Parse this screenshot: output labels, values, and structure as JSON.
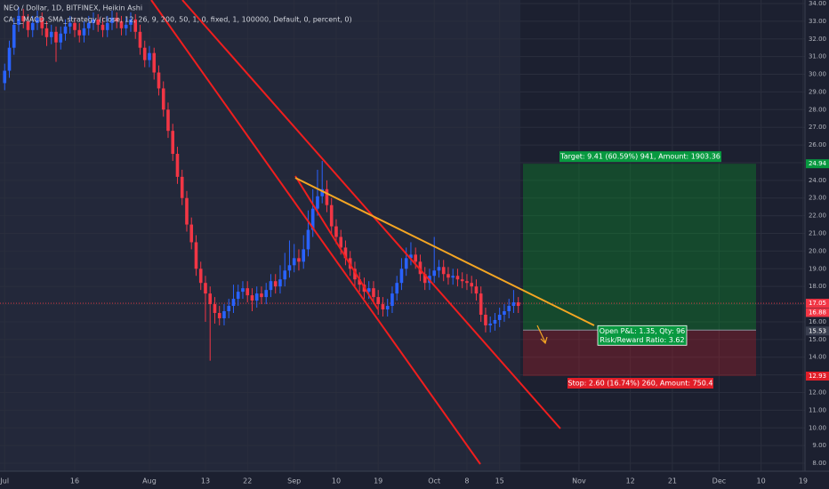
{
  "chart_data": {
    "type": "candlestick",
    "title": "NEO / Dollar, 1D, BITFINEX, Heikin Ashi",
    "subtitle": "CA_-_MACD_SMA_strategy (close, 12, 26, 9, 200, 50, 1, 0, fixed, 1, 100000, Default, 0, percent, 0)",
    "up_color": "#2962ff",
    "down_color": "#f23645",
    "xlim": [
      -1,
      171.4
    ],
    "ylim": [
      7.55,
      34.2
    ],
    "xticks": [
      {
        "value": 0,
        "label": "Jul"
      },
      {
        "value": 15,
        "label": "16"
      },
      {
        "value": 31,
        "label": "Aug"
      },
      {
        "value": 43,
        "label": "13"
      },
      {
        "value": 52,
        "label": "22"
      },
      {
        "value": 62,
        "label": "Sep"
      },
      {
        "value": 71,
        "label": "10"
      },
      {
        "value": 80,
        "label": "19"
      },
      {
        "value": 92,
        "label": "Oct"
      },
      {
        "value": 99,
        "label": "8"
      },
      {
        "value": 106,
        "label": "15"
      },
      {
        "value": 123,
        "label": "Nov"
      },
      {
        "value": 134,
        "label": "12"
      },
      {
        "value": 143,
        "label": "21"
      },
      {
        "value": 153,
        "label": "Dec"
      },
      {
        "value": 162,
        "label": "10"
      },
      {
        "value": 171,
        "label": "19"
      }
    ],
    "yticks": [
      {
        "value": 8,
        "label": "8.00"
      },
      {
        "value": 9,
        "label": "9.00"
      },
      {
        "value": 10,
        "label": "10.00"
      },
      {
        "value": 11,
        "label": "11.00"
      },
      {
        "value": 12,
        "label": "12.00"
      },
      {
        "value": 13,
        "label": "13.00"
      },
      {
        "value": 14,
        "label": "14.00"
      },
      {
        "value": 15,
        "label": "15.00"
      },
      {
        "value": 16,
        "label": "16.00"
      },
      {
        "value": 17,
        "label": "17.00"
      },
      {
        "value": 18,
        "label": "18.00"
      },
      {
        "value": 19,
        "label": "19.00"
      },
      {
        "value": 20,
        "label": "20.00"
      },
      {
        "value": 21,
        "label": "21.00"
      },
      {
        "value": 22,
        "label": "22.00"
      },
      {
        "value": 23,
        "label": "23.00"
      },
      {
        "value": 24,
        "label": "24.00"
      },
      {
        "value": 25,
        "label": "25.00"
      },
      {
        "value": 26,
        "label": "26.00"
      },
      {
        "value": 27,
        "label": "27.00"
      },
      {
        "value": 28,
        "label": "28.00"
      },
      {
        "value": 29,
        "label": "29.00"
      },
      {
        "value": 30,
        "label": "30.00"
      },
      {
        "value": 31,
        "label": "31.00"
      },
      {
        "value": 32,
        "label": "32.00"
      },
      {
        "value": 33,
        "label": "33.00"
      },
      {
        "value": 34,
        "label": "34.00"
      }
    ],
    "current_price": 17.05,
    "last_close": 16.88,
    "position": {
      "target": 24.94,
      "entry": 15.53,
      "stop": 12.93,
      "target_label": "Target: 9.41 (60.59%) 941, Amount: 1903.36",
      "pnl_label": "Open P&L: 1.35, Qty: 96",
      "ratio_label": "Risk/Reward Ratio: 3.62",
      "stop_label": "Stop: 2.60 (16.74%) 260, Amount: 750.4"
    },
    "x": [
      0,
      1,
      2,
      3,
      4,
      5,
      6,
      7,
      8,
      9,
      10,
      11,
      12,
      13,
      14,
      15,
      16,
      17,
      18,
      19,
      20,
      21,
      22,
      23,
      24,
      25,
      26,
      27,
      28,
      29,
      30,
      31,
      32,
      33,
      34,
      35,
      36,
      37,
      38,
      39,
      40,
      41,
      42,
      43,
      44,
      45,
      46,
      47,
      48,
      49,
      50,
      51,
      52,
      53,
      54,
      55,
      56,
      57,
      58,
      59,
      60,
      61,
      62,
      63,
      64,
      65,
      66,
      67,
      68,
      69,
      70,
      71,
      72,
      73,
      74,
      75,
      76,
      77,
      78,
      79,
      80,
      81,
      82,
      83,
      84,
      85,
      86,
      87,
      88,
      89,
      90,
      91,
      92,
      93,
      94,
      95,
      96,
      97,
      98,
      99,
      100,
      101,
      102,
      103,
      104,
      105,
      106,
      107,
      108,
      109,
      110
    ],
    "ohlc": [
      [
        29.5,
        30.6,
        29.1,
        30.2
      ],
      [
        30.2,
        31.9,
        29.8,
        31.5
      ],
      [
        31.5,
        33.2,
        31.1,
        32.8
      ],
      [
        32.8,
        33.8,
        32.4,
        33.3
      ],
      [
        33.3,
        33.7,
        32.6,
        33.0
      ],
      [
        33.0,
        33.4,
        32.1,
        32.5
      ],
      [
        32.5,
        33.3,
        32.1,
        32.9
      ],
      [
        32.9,
        33.6,
        32.5,
        33.2
      ],
      [
        33.2,
        33.5,
        32.2,
        32.6
      ],
      [
        32.6,
        33.0,
        31.6,
        32.1
      ],
      [
        32.1,
        32.8,
        31.7,
        32.4
      ],
      [
        32.4,
        32.7,
        30.7,
        31.8
      ],
      [
        31.8,
        32.7,
        31.4,
        32.3
      ],
      [
        32.3,
        33.1,
        31.9,
        32.7
      ],
      [
        32.7,
        33.3,
        32.3,
        32.9
      ],
      [
        32.9,
        33.2,
        32.1,
        32.5
      ],
      [
        32.5,
        32.9,
        31.8,
        32.2
      ],
      [
        32.2,
        33.0,
        31.8,
        32.6
      ],
      [
        32.6,
        33.3,
        32.2,
        32.9
      ],
      [
        32.9,
        33.5,
        32.5,
        33.1
      ],
      [
        33.1,
        33.4,
        32.4,
        32.8
      ],
      [
        32.8,
        33.2,
        32.1,
        32.5
      ],
      [
        32.5,
        33.3,
        32.1,
        32.9
      ],
      [
        32.9,
        33.6,
        32.5,
        33.2
      ],
      [
        33.2,
        33.5,
        32.6,
        33.0
      ],
      [
        33.0,
        33.3,
        32.2,
        32.6
      ],
      [
        32.6,
        33.2,
        32.2,
        32.8
      ],
      [
        32.8,
        33.5,
        32.4,
        33.1
      ],
      [
        33.1,
        33.4,
        32.0,
        32.4
      ],
      [
        32.4,
        32.8,
        31.1,
        31.5
      ],
      [
        31.5,
        31.9,
        30.4,
        30.8
      ],
      [
        30.8,
        31.6,
        30.4,
        31.2
      ],
      [
        31.2,
        31.5,
        29.7,
        30.1
      ],
      [
        30.1,
        30.5,
        28.8,
        29.2
      ],
      [
        29.2,
        29.6,
        27.6,
        28.0
      ],
      [
        28.0,
        28.4,
        26.4,
        26.8
      ],
      [
        26.8,
        27.2,
        25.1,
        25.5
      ],
      [
        25.5,
        25.9,
        23.8,
        24.2
      ],
      [
        24.2,
        24.6,
        22.6,
        23.0
      ],
      [
        23.0,
        23.4,
        21.1,
        21.5
      ],
      [
        21.5,
        21.9,
        20.1,
        20.5
      ],
      [
        20.5,
        20.9,
        18.6,
        19.0
      ],
      [
        19.0,
        19.4,
        17.8,
        18.2
      ],
      [
        18.2,
        18.6,
        16.0,
        17.6
      ],
      [
        17.6,
        18.0,
        13.8,
        17.0
      ],
      [
        17.0,
        17.4,
        15.9,
        16.5
      ],
      [
        16.5,
        16.9,
        15.8,
        16.2
      ],
      [
        16.2,
        17.0,
        15.8,
        16.6
      ],
      [
        16.6,
        17.3,
        16.2,
        16.9
      ],
      [
        16.9,
        18.1,
        16.5,
        17.3
      ],
      [
        17.3,
        18.1,
        16.9,
        17.7
      ],
      [
        17.7,
        18.3,
        17.3,
        17.9
      ],
      [
        17.9,
        18.3,
        17.1,
        17.5
      ],
      [
        17.5,
        17.9,
        16.6,
        17.2
      ],
      [
        17.2,
        18.0,
        16.8,
        17.6
      ],
      [
        17.6,
        18.0,
        17.0,
        17.4
      ],
      [
        17.4,
        18.2,
        17.0,
        17.8
      ],
      [
        17.8,
        18.7,
        17.4,
        18.3
      ],
      [
        18.3,
        18.7,
        17.6,
        18.0
      ],
      [
        18.0,
        19.2,
        17.6,
        18.4
      ],
      [
        18.4,
        19.9,
        18.0,
        18.9
      ],
      [
        18.9,
        20.6,
        18.5,
        19.2
      ],
      [
        19.2,
        20.4,
        18.8,
        19.6
      ],
      [
        19.6,
        20.1,
        18.9,
        19.4
      ],
      [
        19.4,
        20.9,
        19.0,
        20.1
      ],
      [
        20.1,
        22.3,
        19.7,
        21.2
      ],
      [
        21.2,
        23.5,
        20.8,
        22.4
      ],
      [
        22.4,
        24.6,
        22.0,
        23.1
      ],
      [
        23.1,
        25.1,
        22.7,
        23.5
      ],
      [
        23.5,
        24.0,
        22.2,
        22.6
      ],
      [
        22.6,
        23.0,
        21.0,
        21.4
      ],
      [
        21.4,
        21.8,
        20.4,
        20.8
      ],
      [
        20.8,
        21.2,
        19.8,
        20.2
      ],
      [
        20.2,
        20.6,
        19.2,
        19.6
      ],
      [
        19.6,
        20.0,
        18.6,
        19.0
      ],
      [
        19.0,
        19.4,
        18.0,
        18.4
      ],
      [
        18.4,
        18.8,
        17.7,
        18.1
      ],
      [
        18.1,
        18.5,
        17.3,
        17.7
      ],
      [
        17.7,
        18.3,
        17.3,
        17.9
      ],
      [
        17.9,
        18.3,
        17.0,
        17.4
      ],
      [
        17.4,
        17.8,
        16.4,
        17.0
      ],
      [
        17.0,
        17.4,
        16.3,
        16.7
      ],
      [
        16.7,
        17.3,
        16.3,
        16.9
      ],
      [
        16.9,
        18.0,
        16.5,
        17.6
      ],
      [
        17.6,
        18.6,
        17.2,
        18.2
      ],
      [
        18.2,
        19.6,
        17.8,
        19.0
      ],
      [
        19.0,
        20.2,
        18.6,
        19.6
      ],
      [
        19.6,
        20.5,
        19.2,
        19.8
      ],
      [
        19.8,
        20.2,
        19.0,
        19.4
      ],
      [
        19.4,
        19.8,
        18.3,
        18.7
      ],
      [
        18.7,
        19.1,
        17.8,
        18.2
      ],
      [
        18.2,
        19.0,
        17.8,
        18.6
      ],
      [
        18.6,
        20.8,
        18.2,
        18.9
      ],
      [
        18.9,
        19.5,
        18.5,
        19.1
      ],
      [
        19.1,
        19.5,
        18.3,
        18.7
      ],
      [
        18.7,
        19.1,
        18.1,
        18.5
      ],
      [
        18.5,
        19.0,
        18.1,
        18.6
      ],
      [
        18.6,
        19.0,
        18.0,
        18.4
      ],
      [
        18.4,
        18.8,
        17.9,
        18.3
      ],
      [
        18.3,
        18.7,
        17.8,
        18.2
      ],
      [
        18.2,
        18.6,
        17.6,
        18.0
      ],
      [
        18.0,
        18.4,
        17.2,
        17.6
      ],
      [
        17.6,
        18.0,
        16.0,
        16.4
      ],
      [
        16.4,
        16.8,
        15.4,
        15.8
      ],
      [
        15.8,
        16.3,
        15.4,
        15.9
      ],
      [
        15.9,
        16.5,
        15.5,
        16.1
      ],
      [
        16.1,
        16.8,
        15.7,
        16.4
      ],
      [
        16.4,
        17.0,
        16.0,
        16.6
      ],
      [
        16.6,
        17.3,
        16.2,
        16.9
      ],
      [
        16.9,
        17.8,
        16.5,
        17.1
      ],
      [
        17.1,
        17.4,
        16.5,
        16.9
      ]
    ]
  }
}
